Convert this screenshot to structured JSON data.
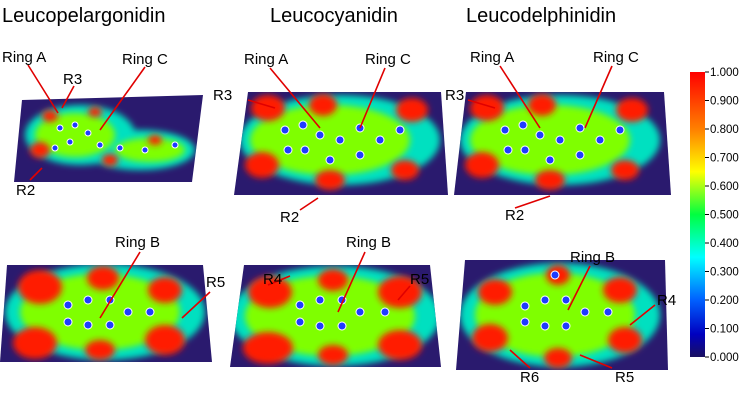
{
  "titles": {
    "leucopelargonidin": "Leucopelargonidin",
    "leucocyanidin": "Leucocyanidin",
    "leucodelphinidin": "Leucodelphinidin"
  },
  "labels": {
    "ring_a": "Ring A",
    "ring_b": "Ring B",
    "ring_c": "Ring C",
    "r2": "R2",
    "r3": "R3",
    "r4": "R4",
    "r5": "R5",
    "r6": "R6"
  },
  "colorbar": {
    "ticks": [
      "1.000",
      "0.900",
      "0.800",
      "0.700",
      "0.600",
      "0.500",
      "0.400",
      "0.300",
      "0.200",
      "0.100",
      "0.000"
    ],
    "colors": [
      "#ff0000",
      "#ff7f00",
      "#ffff00",
      "#00ff00",
      "#00ffff",
      "#0000ff",
      "#1a1060"
    ]
  },
  "colors": {
    "background_map": "#2a1a6e",
    "annotation_arrow": "#e00000"
  }
}
